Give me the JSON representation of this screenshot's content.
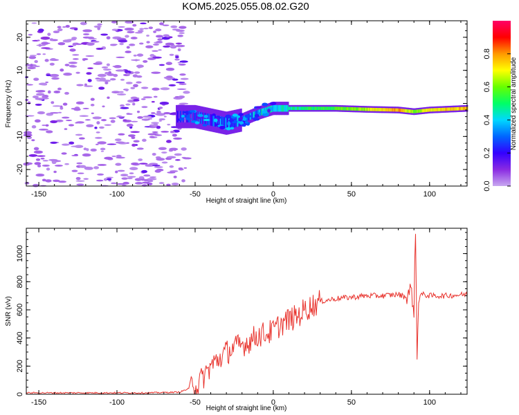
{
  "title": "KOM5.2025.055.08.02.G20",
  "chart_data": [
    {
      "type": "heatmap",
      "xlabel": "Height of straight line (km)",
      "ylabel": "Frequency (Hz)",
      "xlim": [
        -158,
        124
      ],
      "ylim": [
        -25,
        25
      ],
      "xticks": [
        -150,
        -100,
        -50,
        0,
        50,
        100
      ],
      "yticks": [
        -20,
        -10,
        0,
        10,
        20
      ],
      "colorbar": {
        "label": "Normalized spectral amplitude",
        "range": [
          0,
          1
        ],
        "ticks": [
          "0.0",
          "0.2",
          "0.4",
          "0.6",
          "0.8"
        ],
        "colormap": [
          "#c8a8f0",
          "#8a2be2",
          "#3300ff",
          "#0066ff",
          "#00d8ff",
          "#00ff66",
          "#66ff00",
          "#ffff00",
          "#ff9900",
          "#ff0000",
          "#ff0066"
        ]
      },
      "ridge": {
        "description_points_x": [
          -60,
          -50,
          -40,
          -30,
          -20,
          -10,
          0,
          10,
          20,
          40,
          60,
          80,
          90,
          100,
          124
        ],
        "frequency_hz": [
          -4,
          -4,
          -5,
          -6,
          -5,
          -3,
          -1.5,
          -1.5,
          -1.5,
          -1.5,
          -1.8,
          -2,
          -2.5,
          -2,
          -1.5
        ],
        "amplitude": [
          0.15,
          0.2,
          0.25,
          0.3,
          0.3,
          0.35,
          0.4,
          0.45,
          0.5,
          0.55,
          0.65,
          0.8,
          0.6,
          0.7,
          0.75
        ]
      }
    },
    {
      "type": "line",
      "xlabel": "Height of straight line (km)",
      "ylabel": "SNR (v/v)",
      "xlim": [
        -158,
        124
      ],
      "ylim": [
        0,
        1180
      ],
      "xticks": [
        -150,
        -100,
        -50,
        0,
        50,
        100
      ],
      "yticks": [
        0,
        200,
        400,
        600,
        800,
        1000
      ],
      "color": "#e8322c",
      "series": [
        {
          "x": [
            -158,
            -140,
            -120,
            -100,
            -80,
            -60,
            -54,
            -52,
            -50,
            -45,
            -40,
            -35,
            -30,
            -25,
            -20,
            -15,
            -10,
            -5,
            0,
            5,
            10,
            15,
            20,
            25,
            30,
            40,
            50,
            60,
            70,
            80,
            85,
            88,
            90,
            91,
            92,
            93,
            95,
            100,
            110,
            124
          ],
          "y": [
            10,
            10,
            10,
            10,
            10,
            15,
            40,
            150,
            40,
            120,
            200,
            250,
            300,
            330,
            350,
            380,
            420,
            430,
            450,
            500,
            530,
            550,
            600,
            630,
            660,
            680,
            690,
            700,
            700,
            710,
            690,
            750,
            600,
            1180,
            230,
            700,
            710,
            700,
            700,
            710
          ]
        }
      ]
    }
  ]
}
